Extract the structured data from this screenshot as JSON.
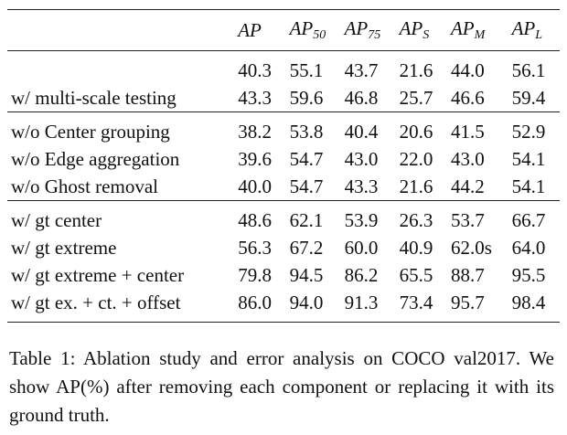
{
  "columns": [
    {
      "base": "AP",
      "sub": ""
    },
    {
      "base": "AP",
      "sub": "50"
    },
    {
      "base": "AP",
      "sub": "75"
    },
    {
      "base": "AP",
      "sub": "S"
    },
    {
      "base": "AP",
      "sub": "M"
    },
    {
      "base": "AP",
      "sub": "L"
    }
  ],
  "groups": [
    {
      "rows": [
        {
          "label": "",
          "values": [
            "40.3",
            "55.1",
            "43.7",
            "21.6",
            "44.0",
            "56.1"
          ]
        },
        {
          "label": "w/ multi-scale testing",
          "values": [
            "43.3",
            "59.6",
            "46.8",
            "25.7",
            "46.6",
            "59.4"
          ]
        }
      ]
    },
    {
      "rows": [
        {
          "label": "w/o Center grouping",
          "values": [
            "38.2",
            "53.8",
            "40.4",
            "20.6",
            "41.5",
            "52.9"
          ]
        },
        {
          "label": "w/o Edge aggregation",
          "values": [
            "39.6",
            "54.7",
            "43.0",
            "22.0",
            "43.0",
            "54.1"
          ]
        },
        {
          "label": "w/o Ghost removal",
          "values": [
            "40.0",
            "54.7",
            "43.3",
            "21.6",
            "44.2",
            "54.1"
          ]
        }
      ]
    },
    {
      "rows": [
        {
          "label": "w/ gt center",
          "values": [
            "48.6",
            "62.1",
            "53.9",
            "26.3",
            "53.7",
            "66.7"
          ]
        },
        {
          "label": "w/ gt extreme",
          "values": [
            "56.3",
            "67.2",
            "60.0",
            "40.9",
            "62.0s",
            "64.0"
          ]
        },
        {
          "label": "w/ gt extreme + center",
          "values": [
            "79.8",
            "94.5",
            "86.2",
            "65.5",
            "88.7",
            "95.5"
          ]
        },
        {
          "label": "w/ gt ex. + ct. + offset",
          "values": [
            "86.0",
            "94.0",
            "91.3",
            "73.4",
            "95.7",
            "98.4"
          ]
        }
      ]
    }
  ],
  "caption": "Table 1: Ablation study and error analysis on COCO val2017. We show AP(%) after removing each component or replacing it with its ground truth."
}
